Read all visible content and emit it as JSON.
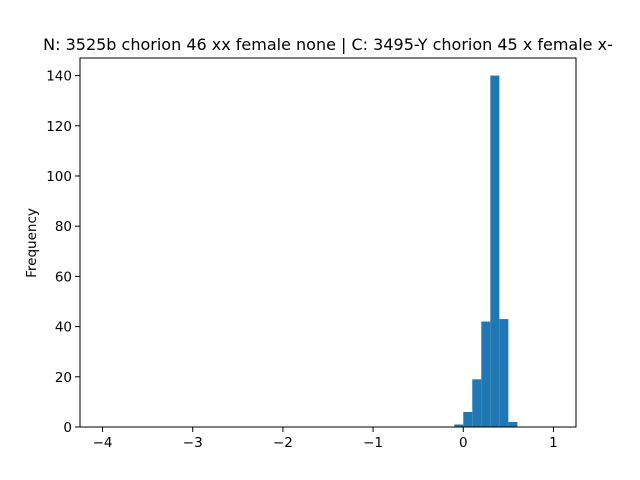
{
  "chart_data": {
    "type": "histogram",
    "title": "N: 3525b chorion 46 xx female none | C: 3495-Y chorion 45 x female x-",
    "ylabel": "Frequency",
    "color": "#1f77b4",
    "bins": [
      -4,
      -3.9,
      -3.8,
      -3.7,
      -3.6,
      -3.5,
      -3.4,
      -3.3,
      -3.2,
      -3.1,
      -3,
      -2.9,
      -2.8,
      -2.7,
      -2.6,
      -2.5,
      -2.4,
      -2.3,
      -2.2,
      -2.1,
      -2,
      -1.9,
      -1.8,
      -1.7,
      -1.6,
      -1.5,
      -1.4,
      -1.3,
      -1.2,
      -1.1,
      -1,
      -0.9,
      -0.8,
      -0.7,
      -0.6,
      -0.5,
      -0.4,
      -0.3,
      -0.2,
      -0.1,
      0,
      0.1,
      0.2,
      0.3,
      0.4,
      0.5,
      0.6,
      0.7,
      0.8,
      0.9,
      1
    ],
    "counts": [
      0,
      0,
      0,
      0,
      0,
      0,
      0,
      0,
      0,
      0,
      0,
      0,
      0,
      0,
      0,
      0,
      0,
      0,
      0,
      0,
      0,
      0,
      0,
      0,
      0,
      0,
      0,
      0,
      0,
      0,
      0,
      0,
      0,
      0,
      0,
      0,
      0,
      0,
      0,
      1,
      6,
      19,
      42,
      140,
      43,
      2,
      0,
      0,
      0,
      0
    ],
    "xlim": [
      -4.25,
      1.25
    ],
    "ylim": [
      0,
      147
    ],
    "xticks": [
      {
        "value": -4,
        "label": "−4"
      },
      {
        "value": -3,
        "label": "−3"
      },
      {
        "value": -2,
        "label": "−2"
      },
      {
        "value": -1,
        "label": "−1"
      },
      0,
      1
    ],
    "yticks": [
      0,
      20,
      40,
      60,
      80,
      100,
      120,
      140
    ]
  }
}
